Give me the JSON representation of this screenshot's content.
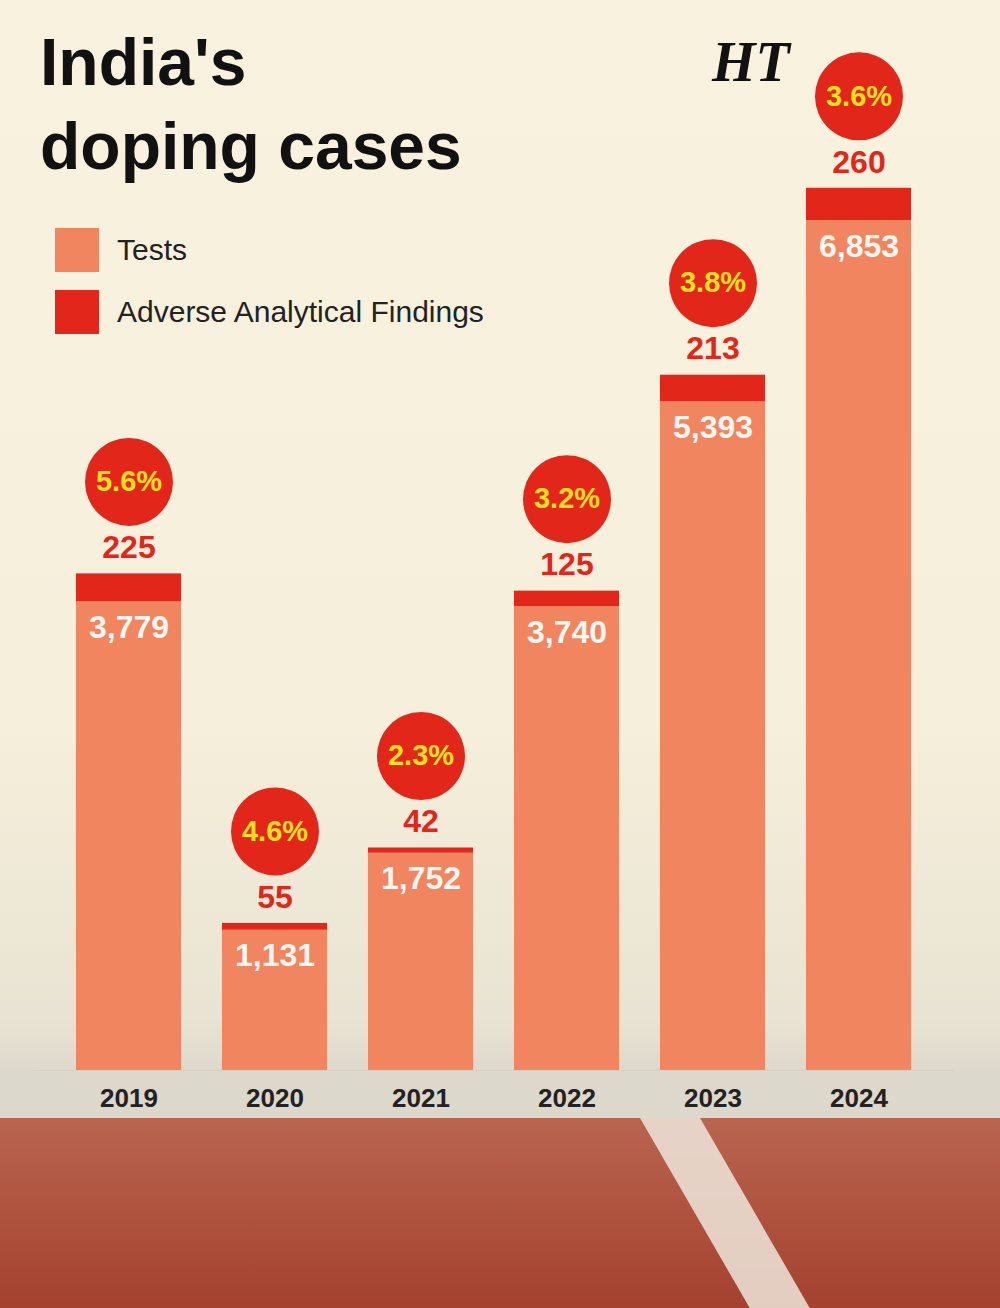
{
  "chart_data": {
    "type": "bar",
    "title": "India's doping cases",
    "source": "HT",
    "categories": [
      "2019",
      "2020",
      "2021",
      "2022",
      "2023",
      "2024"
    ],
    "series": [
      {
        "name": "Tests",
        "color": "#f0855f",
        "values": [
          3779,
          1131,
          1752,
          3740,
          5393,
          6853
        ],
        "value_labels": [
          "3,779",
          "1,131",
          "1,752",
          "3,740",
          "5,393",
          "6,853"
        ]
      },
      {
        "name": "Adverse Analytical Findings",
        "color": "#e3261a",
        "values": [
          225,
          55,
          42,
          125,
          213,
          260
        ]
      }
    ],
    "percentages": [
      5.6,
      4.6,
      2.3,
      3.2,
      3.8,
      3.6
    ],
    "percentage_labels": [
      "5.6%",
      "4.6%",
      "2.3%",
      "3.2%",
      "3.8%",
      "3.6%"
    ],
    "stacked": true,
    "data_labels": true,
    "grid": false,
    "legend": "top-left",
    "ylim": [
      0,
      7200
    ],
    "yticks": [],
    "tick_labels": "x"
  }
}
